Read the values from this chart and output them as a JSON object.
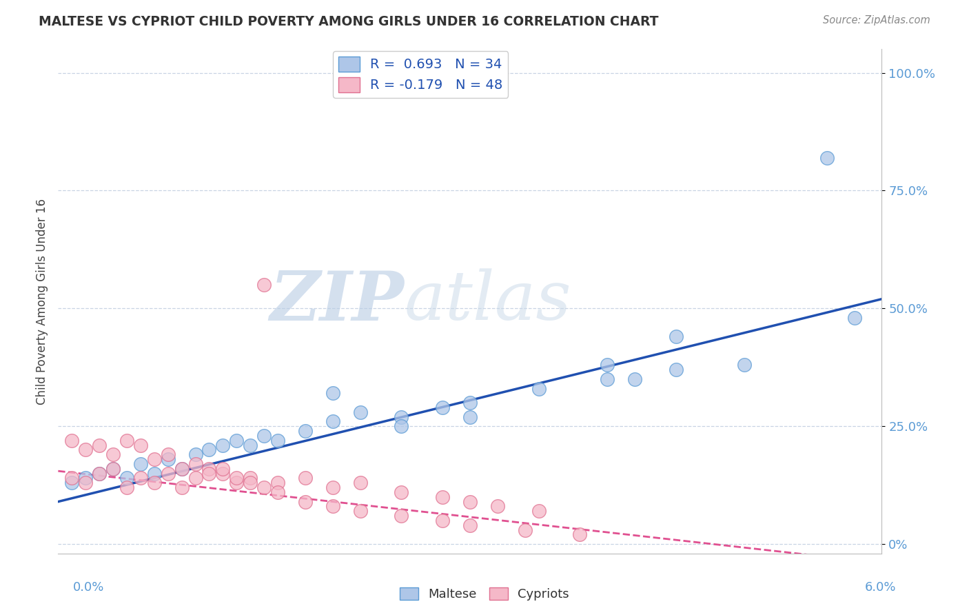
{
  "title": "MALTESE VS CYPRIOT CHILD POVERTY AMONG GIRLS UNDER 16 CORRELATION CHART",
  "source": "Source: ZipAtlas.com",
  "ylabel": "Child Poverty Among Girls Under 16",
  "xlim": [
    0.0,
    0.06
  ],
  "ylim": [
    -0.02,
    1.05
  ],
  "yticks": [
    0.0,
    0.25,
    0.5,
    0.75,
    1.0
  ],
  "ytick_labels": [
    "0%",
    "25.0%",
    "50.0%",
    "75.0%",
    "100.0%"
  ],
  "maltese_R": 0.693,
  "maltese_N": 34,
  "cypriot_R": -0.179,
  "cypriot_N": 48,
  "maltese_color": "#aec6e8",
  "cypriot_color": "#f5b8c8",
  "maltese_edge_color": "#5b9bd5",
  "cypriot_edge_color": "#e07090",
  "trend_maltese_color": "#2050b0",
  "trend_cypriot_color": "#e05090",
  "background_color": "#ffffff",
  "watermark_zip": "ZIP",
  "watermark_atlas": "atlas",
  "watermark_color": "#ccd8e8",
  "maltese_x": [
    0.001,
    0.002,
    0.003,
    0.004,
    0.005,
    0.006,
    0.007,
    0.008,
    0.009,
    0.01,
    0.011,
    0.012,
    0.013,
    0.014,
    0.015,
    0.016,
    0.018,
    0.02,
    0.022,
    0.025,
    0.028,
    0.03,
    0.035,
    0.04,
    0.045,
    0.05,
    0.02,
    0.025,
    0.03,
    0.045,
    0.056,
    0.04,
    0.058,
    0.042
  ],
  "maltese_y": [
    0.13,
    0.14,
    0.15,
    0.16,
    0.14,
    0.17,
    0.15,
    0.18,
    0.16,
    0.19,
    0.2,
    0.21,
    0.22,
    0.21,
    0.23,
    0.22,
    0.24,
    0.26,
    0.28,
    0.27,
    0.29,
    0.3,
    0.33,
    0.35,
    0.37,
    0.38,
    0.32,
    0.25,
    0.27,
    0.44,
    0.82,
    0.38,
    0.48,
    0.35
  ],
  "cypriot_x": [
    0.001,
    0.002,
    0.003,
    0.004,
    0.005,
    0.006,
    0.007,
    0.008,
    0.009,
    0.01,
    0.011,
    0.012,
    0.013,
    0.014,
    0.015,
    0.016,
    0.018,
    0.02,
    0.022,
    0.025,
    0.028,
    0.03,
    0.032,
    0.035,
    0.001,
    0.002,
    0.003,
    0.004,
    0.005,
    0.006,
    0.007,
    0.008,
    0.009,
    0.01,
    0.011,
    0.012,
    0.013,
    0.014,
    0.015,
    0.016,
    0.018,
    0.02,
    0.022,
    0.025,
    0.028,
    0.03,
    0.034,
    0.038
  ],
  "cypriot_y": [
    0.14,
    0.13,
    0.15,
    0.16,
    0.12,
    0.14,
    0.13,
    0.15,
    0.12,
    0.14,
    0.16,
    0.15,
    0.13,
    0.14,
    0.55,
    0.13,
    0.14,
    0.12,
    0.13,
    0.11,
    0.1,
    0.09,
    0.08,
    0.07,
    0.22,
    0.2,
    0.21,
    0.19,
    0.22,
    0.21,
    0.18,
    0.19,
    0.16,
    0.17,
    0.15,
    0.16,
    0.14,
    0.13,
    0.12,
    0.11,
    0.09,
    0.08,
    0.07,
    0.06,
    0.05,
    0.04,
    0.03,
    0.02
  ],
  "maltese_trend_x0": 0.0,
  "maltese_trend_y0": 0.09,
  "maltese_trend_x1": 0.06,
  "maltese_trend_y1": 0.52,
  "cypriot_trend_x0": 0.0,
  "cypriot_trend_y0": 0.155,
  "cypriot_trend_x1": 0.06,
  "cypriot_trend_y1": -0.04
}
